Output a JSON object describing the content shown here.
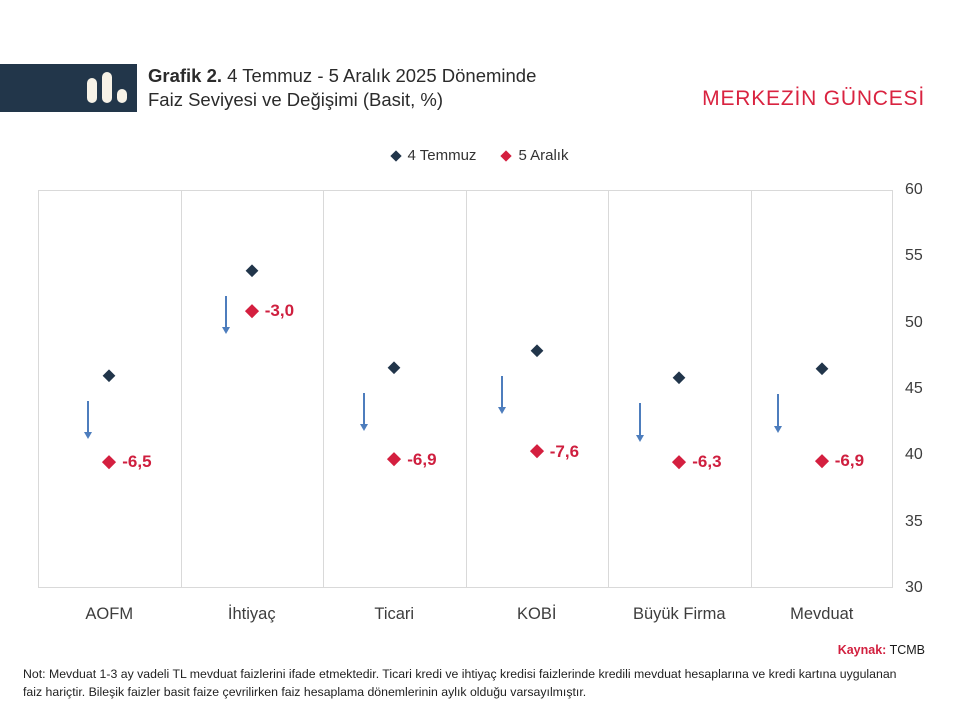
{
  "header": {
    "title_prefix": "Grafik 2.",
    "title_rest": " 4 Temmuz - 5 Aralık 2025 Döneminde",
    "title_line2": "Faiz Seviyesi ve Değişimi (Basit, %)",
    "wordmark": "MERKEZİN GÜNCESİ"
  },
  "colors": {
    "navy": "#21354a",
    "crimson": "#d41f3f",
    "arrow_blue": "#4d7dbd",
    "grid_gray": "#d9d9d9",
    "logo_bg": "#22364a",
    "logo_bars": "#f7f2e7"
  },
  "chart_data": {
    "type": "scatter",
    "title": "Grafik 2. 4 Temmuz - 5 Aralık 2025 Döneminde Faiz Seviyesi ve Değişimi (Basit, %)",
    "categories": [
      "AOFM",
      "İhtiyaç",
      "Ticari",
      "KOBİ",
      "Büyük Firma",
      "Mevduat"
    ],
    "series": [
      {
        "name": "4 Temmuz",
        "color": "#21354a",
        "values": [
          46.0,
          53.9,
          46.6,
          47.9,
          45.8,
          46.5
        ]
      },
      {
        "name": "5 Aralık",
        "color": "#d41f3f",
        "values": [
          39.5,
          50.9,
          39.7,
          40.3,
          39.5,
          39.6
        ]
      }
    ],
    "change_labels": [
      "-6,5",
      "-3,0",
      "-6,9",
      "-7,6",
      "-6,3",
      "-6,9"
    ],
    "ylim": [
      30,
      60
    ],
    "yticks": [
      60,
      55,
      50,
      45,
      40,
      35,
      30
    ],
    "grid": "vertical-dividers-only",
    "legend_position": "top-center",
    "yaxis_side": "right",
    "annotations": "blue downward arrow between each pair of points"
  },
  "footer": {
    "source_label": "Kaynak:",
    "source_value": " TCMB",
    "note_lines": [
      "Not: Mevduat 1-3 ay vadeli TL mevduat faizlerini ifade etmektedir. Ticari kredi ve ihtiyaç kredisi faizlerinde kredili mevduat hesaplarına ve kredi kartına uygulanan",
      "faiz hariçtir. Bileşik faizler basit faize çevrilirken faiz hesaplama dönemlerinin aylık olduğu varsayılmıştır."
    ]
  }
}
